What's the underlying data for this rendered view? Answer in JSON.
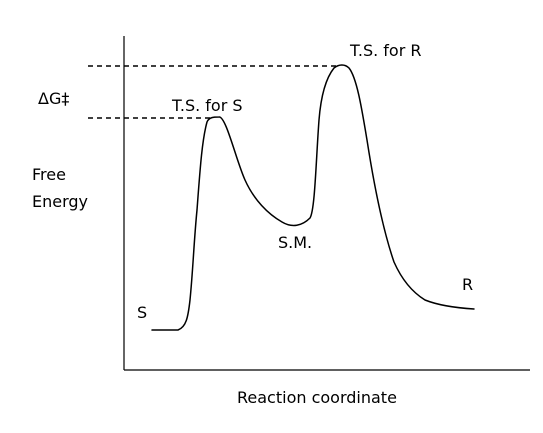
{
  "diagram": {
    "y_axis_label_line1": "Free",
    "y_axis_label_line2": "Energy",
    "x_axis_label": "Reaction coordinate",
    "delta_g_label": "ΔG‡",
    "ts_s_label": "T.S. for S",
    "ts_r_label": "T.S. for R",
    "intermediate_label": "S.M.",
    "start_label": "S",
    "end_label": "R",
    "line_color": "#000000"
  }
}
